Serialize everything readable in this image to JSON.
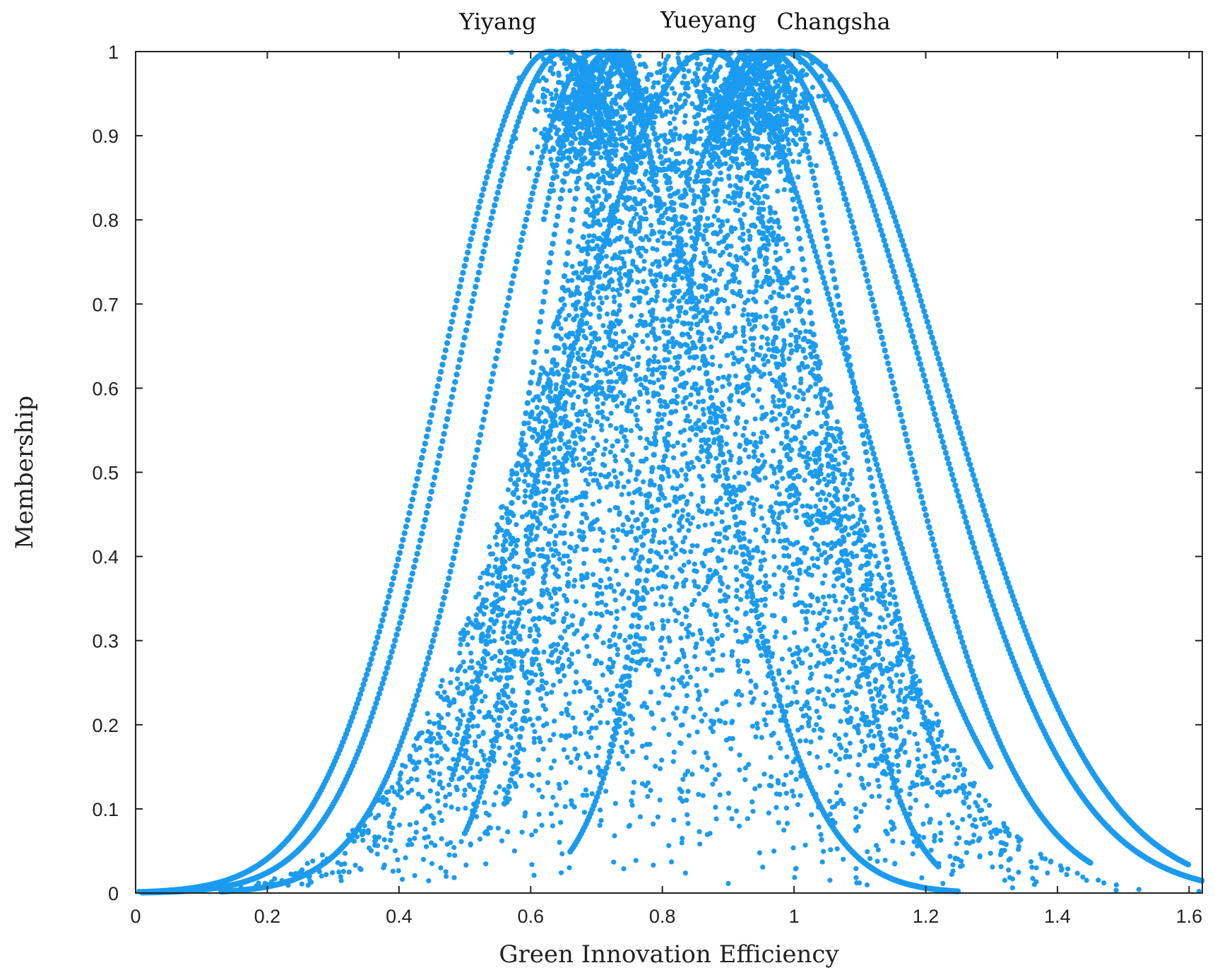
{
  "chart_data": {
    "type": "scatter",
    "title": "",
    "xlabel": "Green Innovation Efficiency",
    "ylabel": "Membership",
    "xlim": [
      0,
      1.62
    ],
    "ylim": [
      0,
      1
    ],
    "grid": false,
    "xticks": [
      "0",
      "0.2",
      "0.4",
      "0.6",
      "0.8",
      "1",
      "1.2",
      "1.4",
      "1.6"
    ],
    "yticks": [
      "0",
      "0.1",
      "0.2",
      "0.3",
      "0.4",
      "0.5",
      "0.6",
      "0.7",
      "0.8",
      "0.9",
      "1"
    ],
    "color": "#1a9bf0",
    "annotations": [
      {
        "text": "Yiyang",
        "x": 0.55,
        "y": 1.035
      },
      {
        "text": "Yueyang",
        "x": 0.87,
        "y": 1.037
      },
      {
        "text": "Changsha",
        "x": 1.06,
        "y": 1.035
      }
    ],
    "curves": [
      {
        "center": 0.63,
        "spread": 0.17,
        "xmin": 0.01,
        "xmax": 0.72
      },
      {
        "center": 0.65,
        "spread": 0.165,
        "xmin": 0.01,
        "xmax": 0.73
      },
      {
        "center": 0.7,
        "spread": 0.16,
        "xmin": 0.13,
        "xmax": 0.79
      },
      {
        "center": 0.72,
        "spread": 0.12,
        "xmin": 0.48,
        "xmax": 0.8
      },
      {
        "center": 0.73,
        "spread": 0.1,
        "xmin": 0.5,
        "xmax": 0.79
      },
      {
        "center": 0.74,
        "spread": 0.085,
        "xmin": 0.56,
        "xmax": 0.76
      },
      {
        "center": 0.72,
        "spread": 0.15,
        "xmin": 0.62,
        "xmax": 1.25
      },
      {
        "center": 0.87,
        "spread": 0.22,
        "xmin": 0.6,
        "xmax": 1.3
      },
      {
        "center": 0.89,
        "spread": 0.09,
        "xmin": 0.72,
        "xmax": 1.0
      },
      {
        "center": 0.93,
        "spread": 0.11,
        "xmin": 0.66,
        "xmax": 1.22
      },
      {
        "center": 0.95,
        "spread": 0.14,
        "xmin": 0.85,
        "xmax": 1.22
      },
      {
        "center": 0.96,
        "spread": 0.19,
        "xmin": 0.85,
        "xmax": 1.45
      },
      {
        "center": 0.98,
        "spread": 0.22,
        "xmin": 0.88,
        "xmax": 1.62
      },
      {
        "center": 1.0,
        "spread": 0.23,
        "xmin": 0.9,
        "xmax": 1.6
      }
    ],
    "clusters": [
      {
        "center_x": 0.69,
        "center_y": 0.93,
        "count": 650
      },
      {
        "center_x": 0.95,
        "center_y": 0.93,
        "count": 650
      }
    ],
    "scatter_envelope": {
      "center": 0.83,
      "spread": 0.22,
      "count": 5200
    }
  }
}
